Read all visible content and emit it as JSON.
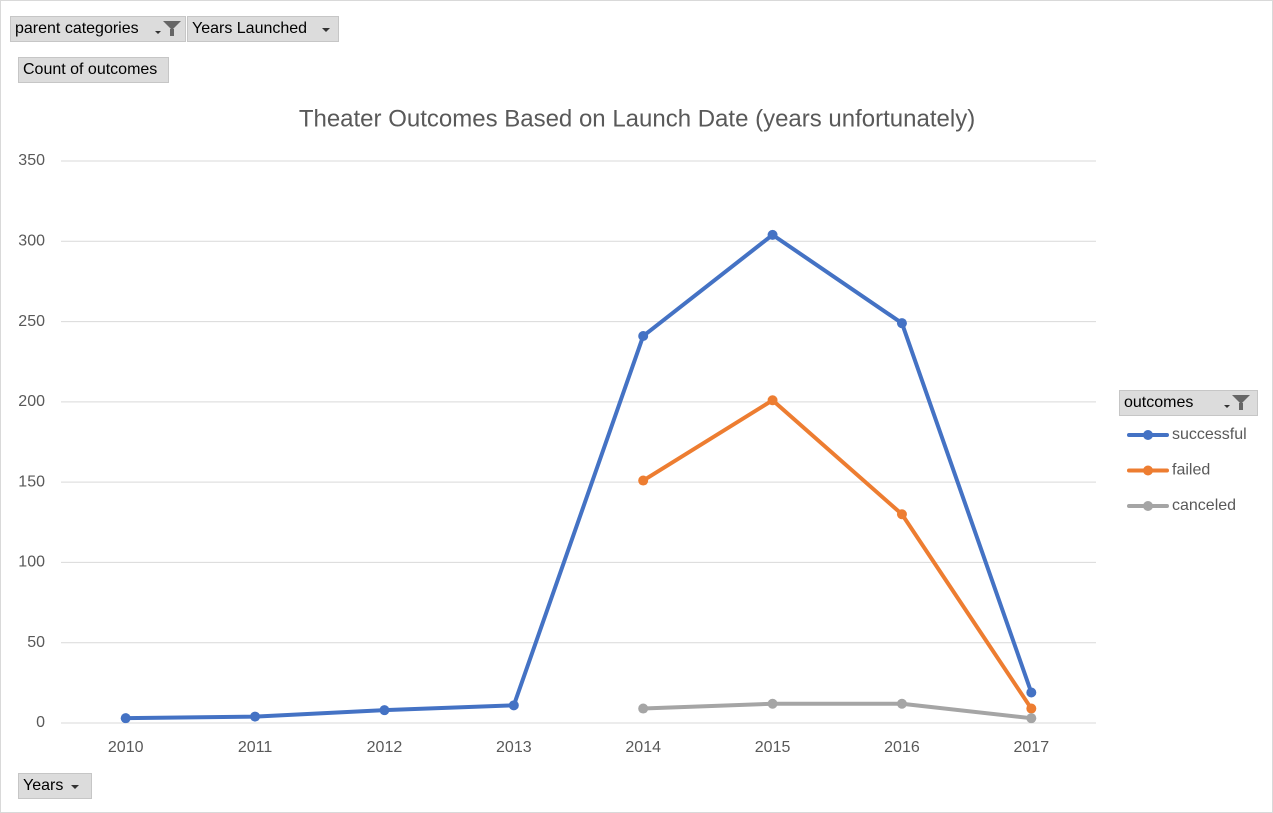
{
  "pivot_fields": {
    "filters": [
      "parent categories",
      "Years Launched"
    ],
    "values_field": "Count of outcomes",
    "legend_field": "outcomes",
    "axis_field": "Years"
  },
  "chart_data": {
    "type": "line",
    "title": "Theater Outcomes Based on Launch Date (years unfortunately)",
    "categories": [
      "2010",
      "2011",
      "2012",
      "2013",
      "2014",
      "2015",
      "2016",
      "2017"
    ],
    "series": [
      {
        "name": "successful",
        "color": "#4472c4",
        "values": [
          3,
          4,
          8,
          11,
          241,
          304,
          249,
          19
        ]
      },
      {
        "name": "failed",
        "color": "#ed7d31",
        "values": [
          null,
          null,
          null,
          null,
          151,
          201,
          130,
          9
        ]
      },
      {
        "name": "canceled",
        "color": "#a5a5a5",
        "values": [
          null,
          null,
          null,
          null,
          9,
          12,
          12,
          3
        ]
      }
    ],
    "ylim": [
      0,
      350
    ],
    "yticks": [
      0,
      50,
      100,
      150,
      200,
      250,
      300,
      350
    ],
    "grid": true,
    "legend": "right"
  }
}
